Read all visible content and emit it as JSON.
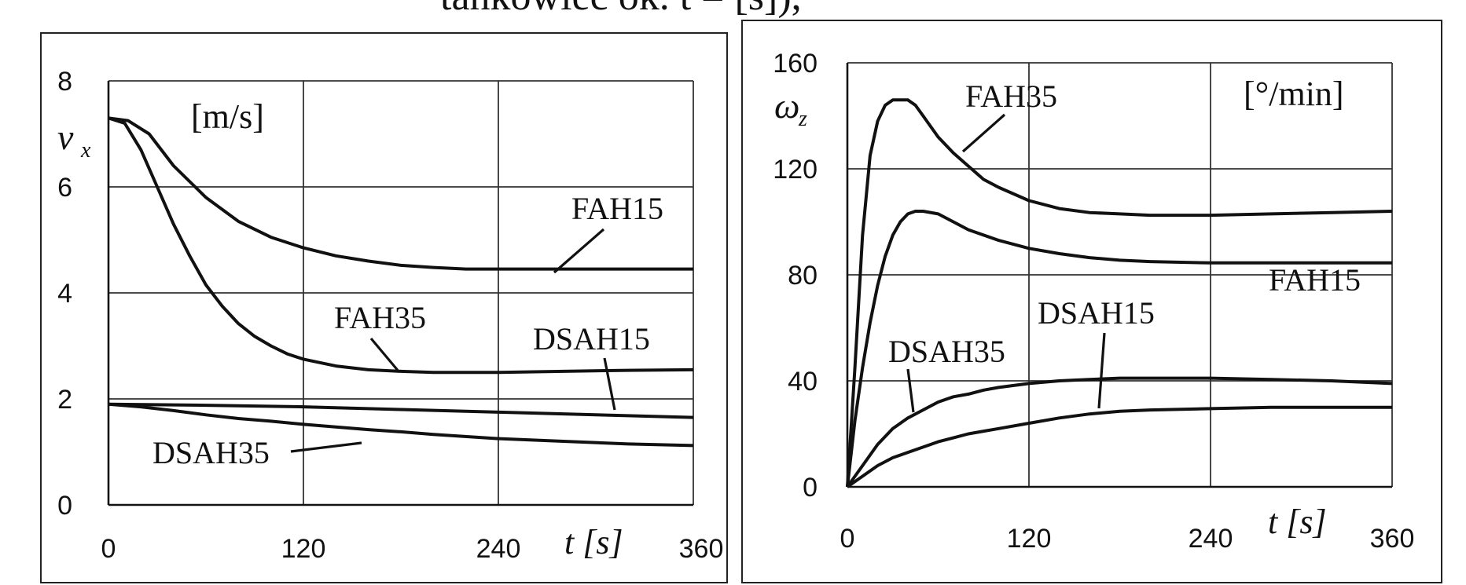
{
  "heading_fragment": "tankowiec ok. t = [s]),",
  "chart_data": [
    {
      "type": "line",
      "title": "",
      "ylabel": "v",
      "ylabel_sub": "x",
      "unit": "[m/s]",
      "xlabel": "t [s]",
      "xlim": [
        0,
        360
      ],
      "ylim": [
        0,
        8
      ],
      "xticks": [
        "0",
        "120",
        "240",
        "360"
      ],
      "yticks": [
        "0",
        "2",
        "4",
        "6",
        "8"
      ],
      "grid": true,
      "series": [
        {
          "name": "FAH15",
          "x": [
            0,
            12,
            25,
            40,
            60,
            80,
            100,
            120,
            140,
            160,
            180,
            200,
            220,
            240,
            280,
            320,
            360
          ],
          "y": [
            7.3,
            7.25,
            7.0,
            6.4,
            5.8,
            5.35,
            5.05,
            4.85,
            4.7,
            4.6,
            4.52,
            4.48,
            4.45,
            4.45,
            4.45,
            4.45,
            4.45
          ]
        },
        {
          "name": "FAH35",
          "x": [
            0,
            10,
            20,
            30,
            40,
            50,
            60,
            70,
            80,
            90,
            100,
            110,
            120,
            140,
            160,
            180,
            200,
            240,
            280,
            320,
            360
          ],
          "y": [
            7.3,
            7.2,
            6.7,
            6.0,
            5.3,
            4.7,
            4.15,
            3.75,
            3.42,
            3.18,
            3.0,
            2.85,
            2.75,
            2.62,
            2.55,
            2.52,
            2.5,
            2.5,
            2.52,
            2.54,
            2.55
          ]
        },
        {
          "name": "DSAH15",
          "x": [
            0,
            60,
            120,
            180,
            240,
            300,
            360
          ],
          "y": [
            1.9,
            1.88,
            1.85,
            1.8,
            1.75,
            1.7,
            1.65
          ]
        },
        {
          "name": "DSAH35",
          "x": [
            0,
            20,
            40,
            60,
            80,
            100,
            120,
            140,
            160,
            180,
            200,
            240,
            280,
            320,
            360
          ],
          "y": [
            1.9,
            1.85,
            1.78,
            1.7,
            1.63,
            1.58,
            1.52,
            1.47,
            1.42,
            1.38,
            1.33,
            1.25,
            1.2,
            1.15,
            1.12
          ]
        }
      ]
    },
    {
      "type": "line",
      "title": "",
      "ylabel": "ω",
      "ylabel_sub": "z",
      "unit": "[°/min]",
      "xlabel": "t [s]",
      "xlim": [
        0,
        360
      ],
      "ylim": [
        0,
        160
      ],
      "xticks": [
        "0",
        "120",
        "240",
        "360"
      ],
      "yticks": [
        "0",
        "40",
        "80",
        "120",
        "160"
      ],
      "grid": true,
      "series": [
        {
          "name": "FAH35",
          "x": [
            0,
            5,
            10,
            15,
            20,
            25,
            30,
            35,
            40,
            45,
            50,
            60,
            70,
            80,
            90,
            100,
            120,
            140,
            160,
            180,
            200,
            240,
            280,
            320,
            360
          ],
          "y": [
            0,
            45,
            95,
            125,
            138,
            144,
            146,
            146,
            146,
            144,
            140,
            132,
            126,
            121,
            116,
            113,
            108,
            105,
            103.5,
            103,
            102.5,
            102.5,
            103,
            103.5,
            104
          ]
        },
        {
          "name": "FAH15",
          "x": [
            0,
            5,
            10,
            15,
            20,
            25,
            30,
            35,
            40,
            45,
            50,
            60,
            70,
            80,
            100,
            120,
            140,
            160,
            180,
            200,
            240,
            280,
            320,
            360
          ],
          "y": [
            0,
            25,
            45,
            62,
            76,
            87,
            95,
            100,
            103,
            104,
            104,
            103,
            100,
            97,
            93,
            90,
            88,
            86.5,
            85.5,
            85,
            84.5,
            84.5,
            84.5,
            84.5
          ]
        },
        {
          "name": "DSAH35",
          "x": [
            0,
            10,
            20,
            30,
            40,
            50,
            60,
            70,
            80,
            90,
            100,
            120,
            140,
            160,
            180,
            200,
            240,
            280,
            320,
            360
          ],
          "y": [
            0,
            8,
            16,
            22,
            26,
            29,
            32,
            34,
            35,
            36.5,
            37.5,
            39,
            40,
            40.5,
            41,
            41,
            41,
            40.5,
            40,
            39
          ]
        },
        {
          "name": "DSAH15",
          "x": [
            0,
            10,
            20,
            30,
            40,
            50,
            60,
            70,
            80,
            90,
            100,
            120,
            140,
            160,
            180,
            200,
            240,
            280,
            320,
            360
          ],
          "y": [
            0,
            4,
            8,
            11,
            13,
            15,
            17,
            18.5,
            20,
            21,
            22,
            24,
            26,
            27.5,
            28.5,
            29,
            29.5,
            30,
            30,
            30
          ]
        }
      ]
    }
  ]
}
